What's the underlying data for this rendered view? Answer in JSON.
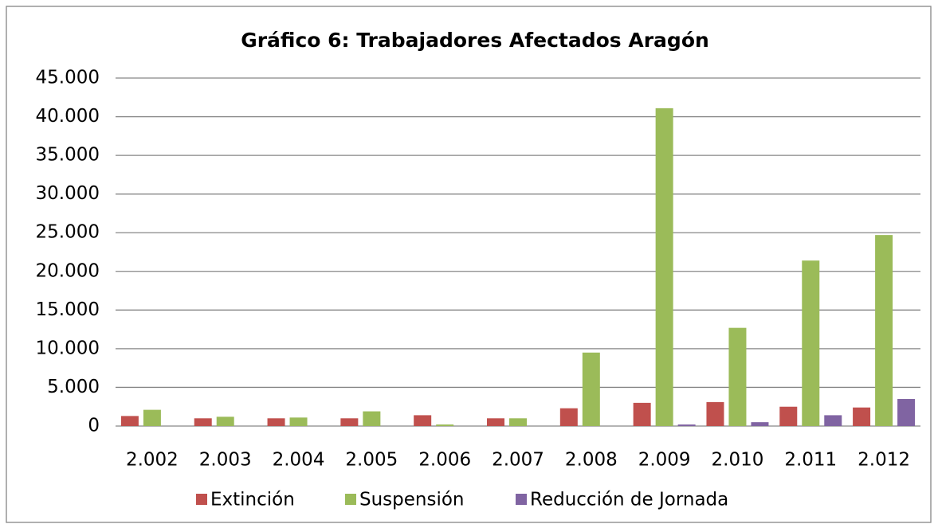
{
  "chart_data": {
    "type": "bar",
    "title": "Gráfico 6:  Trabajadores Afectados Aragón",
    "categories": [
      "2.002",
      "2.003",
      "2.004",
      "2.005",
      "2.006",
      "2.007",
      "2.008",
      "2.009",
      "2.010",
      "2.011",
      "2.012"
    ],
    "series": [
      {
        "name": "Extinción",
        "color": "#c0504d",
        "values": [
          1300,
          1000,
          1000,
          1000,
          1400,
          1000,
          2300,
          3000,
          3100,
          2500,
          2400
        ]
      },
      {
        "name": "Suspensión",
        "color": "#9bbb59",
        "values": [
          2100,
          1200,
          1100,
          1900,
          200,
          1000,
          9500,
          41100,
          12700,
          21400,
          24700
        ]
      },
      {
        "name": "Reducción de Jornada",
        "color": "#8064a2",
        "values": [
          0,
          0,
          0,
          0,
          0,
          0,
          0,
          200,
          500,
          1400,
          3500
        ]
      }
    ],
    "ylim": [
      0,
      45000
    ],
    "yticks": [
      0,
      {
        "value": 5000,
        "label": "5.000"
      },
      {
        "value": 10000,
        "label": "10.000"
      },
      {
        "value": 15000,
        "label": "15.000"
      },
      {
        "value": 20000,
        "label": "20.000"
      },
      {
        "value": 25000,
        "label": "25.000"
      },
      {
        "value": 30000,
        "label": "30.000"
      },
      {
        "value": 35000,
        "label": "35.000"
      },
      {
        "value": 40000,
        "label": "40.000"
      },
      {
        "value": 45000,
        "label": "45.000"
      }
    ],
    "grid": true,
    "legend": "bottom"
  }
}
